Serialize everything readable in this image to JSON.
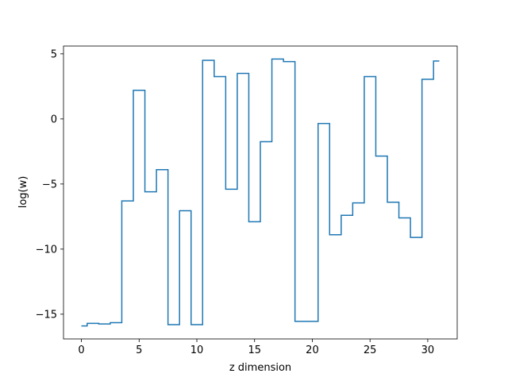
{
  "chart_data": {
    "type": "line",
    "drawstyle": "steps-mid",
    "xlabel": "z dimension",
    "ylabel": "log(w)",
    "xlim": [
      -1.55,
      32.55
    ],
    "ylim": [
      -16.9,
      5.6
    ],
    "xticks": [
      0,
      5,
      10,
      15,
      20,
      25,
      30
    ],
    "yticks": [
      -15,
      -10,
      -5,
      0,
      5
    ],
    "xtick_labels": [
      "0",
      "5",
      "10",
      "15",
      "20",
      "25",
      "30"
    ],
    "ytick_labels": [
      "−15",
      "−10",
      "−5",
      "0",
      "5"
    ],
    "grid": false,
    "series": [
      {
        "color": "#1f77b4",
        "x": [
          0,
          1,
          2,
          3,
          4,
          5,
          6,
          7,
          8,
          9,
          10,
          11,
          12,
          13,
          14,
          15,
          16,
          17,
          18,
          19,
          20,
          21,
          22,
          23,
          24,
          25,
          26,
          27,
          28,
          29,
          30,
          31
        ],
        "y": [
          -15.9,
          -15.7,
          -15.75,
          -15.65,
          -6.3,
          2.2,
          -5.6,
          -3.9,
          -15.8,
          -7.05,
          -15.8,
          4.5,
          3.25,
          -5.4,
          3.5,
          -7.9,
          -1.75,
          4.6,
          4.4,
          -15.55,
          -15.55,
          -0.35,
          -8.9,
          -7.4,
          -6.45,
          3.25,
          -2.85,
          -6.4,
          -7.6,
          -9.1,
          3.05,
          4.45
        ]
      }
    ]
  }
}
